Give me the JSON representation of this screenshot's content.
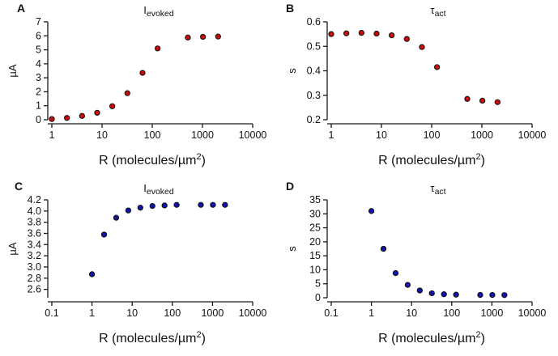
{
  "figure": {
    "background": "#ffffff",
    "axis_color": "#1a1a1a",
    "text_color": "#111111"
  },
  "chart_data": [
    {
      "type": "scatter",
      "panel": "A",
      "title": "I_evoked",
      "title_main": "I",
      "title_sub": "evoked",
      "ylabel": "µA",
      "xlabel": "R (molecules/µm²)",
      "xlabel_main": "R (molecules/µm",
      "xlabel_sup": "2",
      "xlabel_end": ")",
      "x_scale": "log",
      "xlim": [
        1,
        10000
      ],
      "ylim": [
        0,
        7
      ],
      "xtick_values": [
        1,
        10,
        100,
        1000,
        10000
      ],
      "xtick_labels": [
        "1",
        "10",
        "100",
        "1000",
        "10000"
      ],
      "ytick_values": [
        0,
        1,
        2,
        3,
        4,
        5,
        6,
        7
      ],
      "ytick_labels": [
        "0",
        "1",
        "2",
        "3",
        "4",
        "5",
        "6",
        "7"
      ],
      "marker": {
        "fill": "#cf0a0a",
        "stroke": "#131313"
      },
      "x": [
        1,
        2,
        4,
        8,
        16,
        32,
        64,
        128,
        512,
        1024,
        2048
      ],
      "y": [
        0.05,
        0.13,
        0.27,
        0.5,
        0.97,
        1.9,
        3.35,
        5.1,
        5.88,
        5.93,
        5.95
      ]
    },
    {
      "type": "scatter",
      "panel": "B",
      "title": "τ_act",
      "title_main": "τ",
      "title_sub": "act",
      "ylabel": "s",
      "xlabel": "R (molecules/µm²)",
      "xlabel_main": "R (molecules/µm",
      "xlabel_sup": "2",
      "xlabel_end": ")",
      "x_scale": "log",
      "xlim": [
        1,
        10000
      ],
      "ylim": [
        0.2,
        0.6
      ],
      "xtick_values": [
        1,
        10,
        100,
        1000,
        10000
      ],
      "xtick_labels": [
        "1",
        "10",
        "100",
        "1000",
        "10000"
      ],
      "ytick_values": [
        0.2,
        0.3,
        0.4,
        0.5,
        0.6
      ],
      "ytick_labels": [
        "0.2",
        "0.3",
        "0.4",
        "0.5",
        "0.6"
      ],
      "marker": {
        "fill": "#cf0a0a",
        "stroke": "#131313"
      },
      "x": [
        1,
        2,
        4,
        8,
        16,
        32,
        64,
        128,
        512,
        1024,
        2048
      ],
      "y": [
        0.55,
        0.553,
        0.555,
        0.552,
        0.545,
        0.53,
        0.497,
        0.415,
        0.285,
        0.278,
        0.272
      ]
    },
    {
      "type": "scatter",
      "panel": "C",
      "title": "I_evoked",
      "title_main": "I",
      "title_sub": "evoked",
      "ylabel": "µA",
      "xlabel": "R (molecules/µm²)",
      "xlabel_main": "R (molecules/µm",
      "xlabel_sup": "2",
      "xlabel_end": ")",
      "x_scale": "log",
      "xlim": [
        0.1,
        10000
      ],
      "ylim": [
        2.45,
        4.2
      ],
      "xtick_values": [
        0.1,
        1,
        10,
        100,
        1000,
        10000
      ],
      "xtick_labels": [
        "0.1",
        "1",
        "10",
        "100",
        "1000",
        "10000"
      ],
      "ytick_values": [
        2.6,
        2.8,
        3.0,
        3.2,
        3.4,
        3.6,
        3.8,
        4.0,
        4.2
      ],
      "ytick_labels": [
        "2.6",
        "2.8",
        "3.0",
        "3.2",
        "3.4",
        "3.6",
        "3.8",
        "4.0",
        "4.2"
      ],
      "marker": {
        "fill": "#1212b0",
        "stroke": "#131313"
      },
      "x": [
        1,
        2,
        4,
        8,
        16,
        32,
        64,
        128,
        512,
        1024,
        2048
      ],
      "y": [
        2.87,
        3.58,
        3.88,
        4.01,
        4.06,
        4.09,
        4.1,
        4.11,
        4.11,
        4.11,
        4.11
      ]
    },
    {
      "type": "scatter",
      "panel": "D",
      "title": "τ_act",
      "title_main": "τ",
      "title_sub": "act",
      "ylabel": "s",
      "xlabel": "R (molecules/µm²)",
      "xlabel_main": "R (molecules/µm",
      "xlabel_sup": "2",
      "xlabel_end": ")",
      "x_scale": "log",
      "xlim": [
        0.1,
        10000
      ],
      "ylim": [
        0,
        35
      ],
      "xtick_values": [
        0.1,
        1,
        10,
        100,
        1000,
        10000
      ],
      "xtick_labels": [
        "0.1",
        "1",
        "10",
        "100",
        "1000",
        "10000"
      ],
      "ytick_values": [
        0,
        5,
        10,
        15,
        20,
        25,
        30,
        35
      ],
      "ytick_labels": [
        "0",
        "5",
        "10",
        "15",
        "20",
        "25",
        "30",
        "35"
      ],
      "marker": {
        "fill": "#1212b0",
        "stroke": "#131313"
      },
      "x": [
        1,
        2,
        4,
        8,
        16,
        32,
        64,
        128,
        512,
        1024,
        2048
      ],
      "y": [
        31,
        17.5,
        8.8,
        4.6,
        2.6,
        1.6,
        1.25,
        1.1,
        1.0,
        1.0,
        0.95
      ]
    }
  ]
}
